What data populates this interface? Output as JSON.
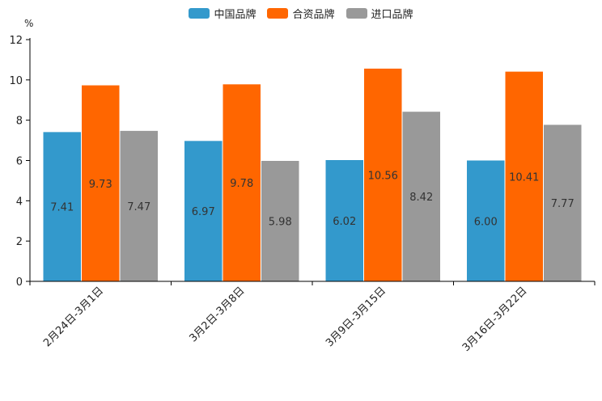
{
  "chart_data": {
    "type": "bar",
    "unit_label": "%",
    "categories": [
      "2月24日-3月1日",
      "3月2日-3月8日",
      "3月9日-3月15日",
      "3月16日-3月22日"
    ],
    "series": [
      {
        "name": "中国品牌",
        "color": "#3399cc",
        "values": [
          7.41,
          6.97,
          6.02,
          6.0
        ],
        "labels": [
          "7.41",
          "6.97",
          "6.02",
          "6.00"
        ]
      },
      {
        "name": "合资品牌",
        "color": "#ff6600",
        "values": [
          9.73,
          9.78,
          10.56,
          10.41
        ],
        "labels": [
          "9.73",
          "9.78",
          "10.56",
          "10.41"
        ]
      },
      {
        "name": "进口品牌",
        "color": "#999999",
        "values": [
          7.47,
          5.98,
          8.42,
          7.77
        ],
        "labels": [
          "7.47",
          "5.98",
          "8.42",
          "7.77"
        ]
      }
    ],
    "ylim": [
      0,
      12
    ],
    "yticks": [
      0,
      2,
      4,
      6,
      8,
      10,
      12
    ],
    "legend_position": "top-center",
    "grid": false
  }
}
